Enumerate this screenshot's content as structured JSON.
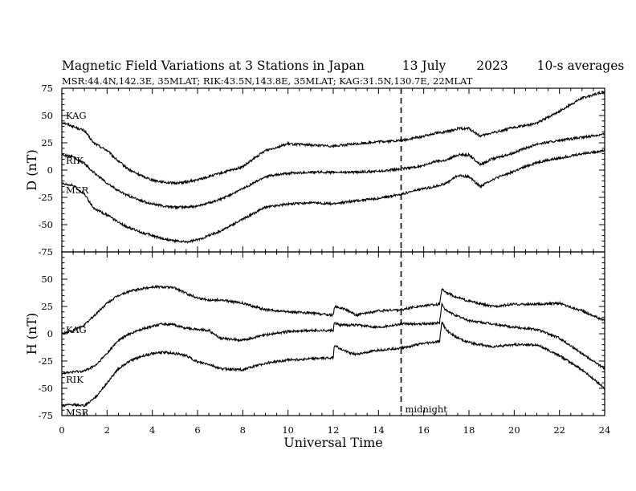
{
  "header": {
    "title": "Magnetic Field Variations at 3 Stations in Japan",
    "date": "13 July",
    "year": "2023",
    "resolution": "10-s averages",
    "stations_line": "MSR:44.4N,142.3E, 35MLAT;  RIK:43.5N,143.8E, 35MLAT;  KAG:31.5N,130.7E, 22MLAT"
  },
  "chart_data": {
    "type": "line",
    "xlabel": "Universal Time",
    "xlim": [
      0,
      24
    ],
    "x_ticks": [
      "0",
      "2",
      "4",
      "6",
      "8",
      "10",
      "12",
      "14",
      "16",
      "18",
      "20",
      "22",
      "24"
    ],
    "marker": {
      "x": 15,
      "label": "midnight",
      "style": "dashed"
    },
    "panels": [
      {
        "ylabel": "D (nT)",
        "ylim": [
          -75,
          75
        ],
        "y_ticks": [
          "75",
          "50",
          "25",
          "0",
          "-25",
          "-50",
          "-75"
        ],
        "series": [
          {
            "name": "KAG",
            "x": [
              0,
              0.5,
              1,
              1.4,
              2,
              2.5,
              3,
              3.5,
              4,
              4.5,
              5,
              5.5,
              6,
              7,
              8,
              9,
              10,
              11,
              12,
              13,
              14,
              15,
              16,
              16.5,
              17,
              17.5,
              18,
              18.5,
              19,
              20,
              21,
              22,
              23,
              24
            ],
            "y": [
              44,
              40,
              36,
              25,
              18,
              8,
              0,
              -5,
              -9,
              -11,
              -12,
              -11,
              -9,
              -3,
              3,
              18,
              24,
              23,
              22,
              24,
              26,
              27,
              31,
              34,
              35,
              38,
              38,
              31,
              34,
              39,
              43,
              54,
              66,
              72
            ]
          },
          {
            "name": "RIK",
            "x": [
              0,
              0.5,
              1,
              1.4,
              2,
              2.5,
              3,
              3.5,
              4,
              4.5,
              5,
              5.5,
              6,
              7,
              8,
              9,
              10,
              11,
              12,
              13,
              14,
              15,
              16,
              16.5,
              17,
              17.5,
              18,
              18.5,
              19,
              20,
              21,
              22,
              23,
              24
            ],
            "y": [
              14,
              12,
              6,
              -2,
              -12,
              -19,
              -24,
              -28,
              -31,
              -33,
              -34,
              -34,
              -33,
              -27,
              -17,
              -6,
              -3,
              -2,
              -2,
              -2,
              -1,
              1,
              4,
              8,
              9,
              14,
              14,
              5,
              10,
              16,
              24,
              27,
              30,
              33
            ]
          },
          {
            "name": "MSR",
            "x": [
              0,
              0.5,
              1,
              1.4,
              2,
              2.5,
              3,
              3.5,
              4,
              4.5,
              5,
              5.5,
              6,
              7,
              8,
              9,
              10,
              11,
              12,
              13,
              14,
              15,
              16,
              16.5,
              17,
              17.5,
              18,
              18.5,
              19,
              20,
              21,
              22,
              23,
              24
            ],
            "y": [
              -12,
              -14,
              -22,
              -35,
              -41,
              -48,
              -53,
              -57,
              -60,
              -63,
              -65,
              -66,
              -64,
              -56,
              -45,
              -34,
              -31,
              -30,
              -31,
              -28,
              -26,
              -22,
              -17,
              -15,
              -12,
              -5,
              -6,
              -15,
              -9,
              -1,
              7,
              11,
              15,
              18
            ]
          }
        ]
      },
      {
        "ylabel": "H (nT)",
        "ylim": [
          -75,
          75
        ],
        "y_ticks": [
          "50",
          "25",
          "0",
          "-25",
          "-50",
          "-75"
        ],
        "series": [
          {
            "name": "KAG",
            "x": [
              0,
              0.5,
              1,
              1.5,
              2,
              2.5,
              3,
              3.5,
              4,
              4.5,
              5,
              5.5,
              6,
              6.5,
              7,
              8,
              9,
              10,
              11,
              12,
              12.05,
              12.3,
              12.8,
              13,
              14,
              15,
              16,
              16.7,
              16.8,
              17,
              17.5,
              18,
              19,
              20,
              21,
              22,
              23,
              24
            ],
            "y": [
              0,
              3,
              8,
              18,
              28,
              35,
              39,
              41,
              43,
              43,
              42,
              37,
              33,
              31,
              31,
              28,
              22,
              20,
              19,
              17,
              25,
              24,
              20,
              17,
              21,
              22,
              26,
              27,
              41,
              38,
              33,
              30,
              25,
              27,
              27,
              28,
              21,
              12
            ]
          },
          {
            "name": "RIK",
            "x": [
              0,
              0.5,
              1,
              1.5,
              2,
              2.5,
              3,
              3.5,
              4,
              4.5,
              5,
              5.5,
              6,
              6.5,
              7,
              8,
              9,
              10,
              11,
              12,
              12.05,
              12.3,
              12.8,
              13,
              14,
              15,
              16,
              16.7,
              16.8,
              17,
              17.5,
              18,
              19,
              20,
              21,
              22,
              23,
              24
            ],
            "y": [
              -36,
              -35,
              -34,
              -29,
              -18,
              -6,
              0,
              4,
              7,
              9,
              8,
              5,
              4,
              3,
              -4,
              -6,
              -1,
              2,
              3,
              3,
              10,
              8,
              8,
              8,
              6,
              9,
              9,
              10,
              27,
              21,
              16,
              12,
              9,
              6,
              4,
              -4,
              -18,
              -32
            ]
          },
          {
            "name": "MSR",
            "x": [
              0,
              0.5,
              1,
              1.5,
              2,
              2.5,
              3,
              3.5,
              4,
              4.5,
              5,
              5.5,
              6,
              6.5,
              7,
              8,
              9,
              10,
              11,
              12,
              12.05,
              12.3,
              12.8,
              13,
              14,
              15,
              16,
              16.7,
              16.8,
              17,
              17.5,
              18,
              19,
              20,
              21,
              22,
              23,
              24
            ],
            "y": [
              -66,
              -65,
              -66,
              -58,
              -45,
              -32,
              -25,
              -21,
              -18,
              -17,
              -18,
              -20,
              -26,
              -28,
              -32,
              -33,
              -27,
              -24,
              -23,
              -22,
              -10,
              -14,
              -18,
              -19,
              -15,
              -13,
              -9,
              -7,
              11,
              3,
              -4,
              -8,
              -12,
              -10,
              -10,
              -20,
              -33,
              -50
            ]
          }
        ]
      }
    ]
  }
}
